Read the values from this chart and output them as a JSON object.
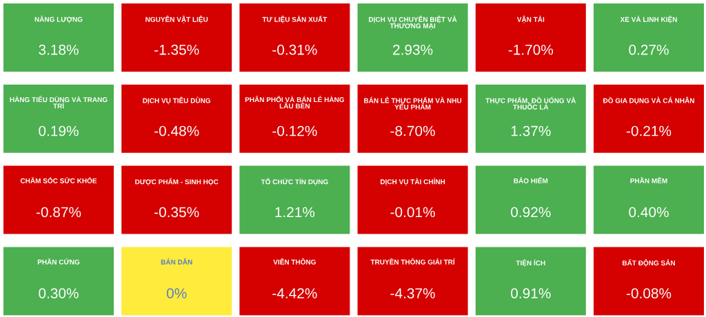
{
  "chart_data": {
    "type": "other",
    "categories": [
      "NĂNG LƯỢNG",
      "NGUYÊN VẬT LIỆU",
      "TƯ LIỆU SẢN XUẤT",
      "DỊCH VỤ CHUYÊN BIỆT VÀ THƯƠNG MẠI",
      "VẬN TẢI",
      "XE VÀ LINH KIỆN",
      "HÀNG TIÊU DÙNG VÀ TRANG TRÍ",
      "DỊCH VỤ TIÊU DÙNG",
      "PHÂN PHỐI VÀ BÁN LẺ HÀNG LÂU BỀN",
      "BÁN LẺ THỰC PHẨM VÀ NHU YẾU PHẨM",
      "THỰC PHẨM, ĐỒ UỐNG VÀ THUỐC LÁ",
      "ĐỒ GIA DỤNG VÀ CÁ NHÂN",
      "CHĂM SÓC SỨC KHỎE",
      "DƯỢC PHẨM - SINH HỌC",
      "TỔ CHỨC TÍN DỤNG",
      "DỊCH VỤ TÀI CHÍNH",
      "BẢO HIỂM",
      "PHẦN MỀM",
      "PHẦN CỨNG",
      "BÁN DẪN",
      "VIỄN THÔNG",
      "TRUYỀN THÔNG GIẢI TRÍ",
      "TIỆN ÍCH",
      "BẤT ĐỘNG SẢN"
    ],
    "values": [
      3.18,
      -1.35,
      -0.31,
      2.93,
      -1.7,
      0.27,
      0.19,
      -0.48,
      -0.12,
      -8.7,
      1.37,
      -0.21,
      -0.87,
      -0.35,
      1.21,
      -0.01,
      0.92,
      0.4,
      0.3,
      0,
      -4.42,
      -4.37,
      0.91,
      -0.08
    ],
    "value_labels": [
      "3.18%",
      "-1.35%",
      "-0.31%",
      "2.93%",
      "-1.70%",
      "0.27%",
      "0.19%",
      "-0.48%",
      "-0.12%",
      "-8.70%",
      "1.37%",
      "-0.21%",
      "-0.87%",
      "-0.35%",
      "1.21%",
      "-0.01%",
      "0.92%",
      "0.40%",
      "0.30%",
      "0%",
      "-4.42%",
      "-4.37%",
      "0.91%",
      "-0.08%"
    ],
    "colors": [
      "#4caf50",
      "#d50000",
      "#d50000",
      "#4caf50",
      "#d50000",
      "#4caf50",
      "#4caf50",
      "#d50000",
      "#d50000",
      "#d50000",
      "#4caf50",
      "#d50000",
      "#d50000",
      "#d50000",
      "#4caf50",
      "#d50000",
      "#4caf50",
      "#4caf50",
      "#4caf50",
      "#ffeb3b",
      "#d50000",
      "#d50000",
      "#4caf50",
      "#d50000"
    ]
  }
}
